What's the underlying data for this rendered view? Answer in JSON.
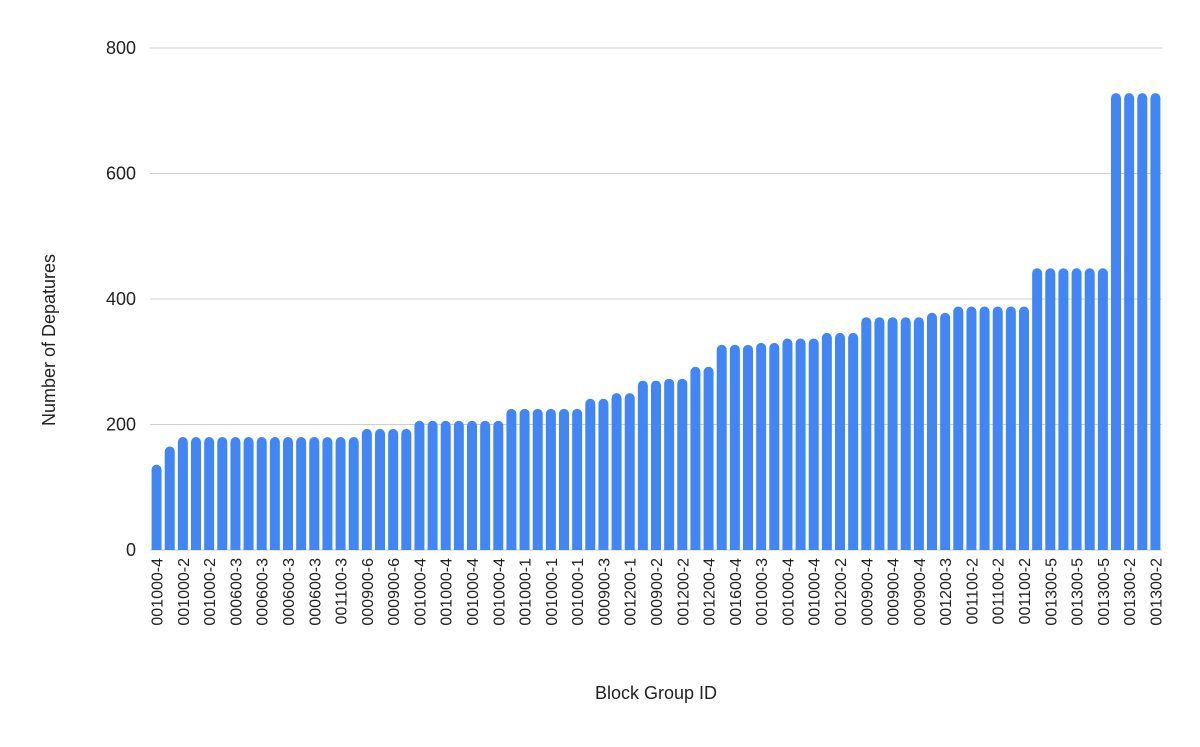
{
  "chart_data": {
    "type": "bar",
    "xlabel": "Block Group ID",
    "ylabel": "Number of Depatures",
    "categories": [
      "001000-4",
      null,
      "001000-2",
      null,
      "001000-2",
      null,
      "000600-3",
      null,
      "000600-3",
      null,
      "000600-3",
      null,
      "000600-3",
      null,
      "001100-3",
      null,
      "000900-6",
      null,
      "000900-6",
      null,
      "001000-4",
      null,
      "001000-4",
      null,
      "001000-4",
      null,
      "001000-4",
      null,
      "001000-1",
      null,
      "001000-1",
      null,
      "001000-1",
      null,
      "000900-3",
      null,
      "001200-1",
      null,
      "000900-2",
      null,
      "001200-2",
      null,
      "001200-4",
      null,
      "001600-4",
      null,
      "001000-3",
      null,
      "001000-4",
      null,
      "001000-4",
      null,
      "001200-2",
      null,
      "000900-4",
      null,
      "000900-4",
      null,
      "000900-4",
      null,
      "001200-3",
      null,
      "001100-2",
      null,
      "001100-2",
      null,
      "001100-2",
      null,
      "001300-5",
      null,
      "001300-5",
      null,
      "001300-5",
      null,
      "001300-2",
      null,
      "001300-2"
    ],
    "values": [
      136,
      165,
      180,
      180,
      180,
      180,
      180,
      180,
      180,
      180,
      180,
      180,
      180,
      180,
      180,
      180,
      193,
      193,
      193,
      193,
      206,
      206,
      206,
      206,
      206,
      206,
      206,
      225,
      225,
      225,
      225,
      225,
      225,
      241,
      241,
      250,
      250,
      270,
      270,
      273,
      273,
      292,
      292,
      327,
      327,
      327,
      330,
      330,
      337,
      337,
      337,
      346,
      346,
      346,
      371,
      371,
      371,
      371,
      371,
      378,
      378,
      388,
      388,
      388,
      388,
      388,
      388,
      449,
      449,
      449,
      449,
      449,
      449,
      728,
      728,
      728,
      728
    ],
    "color": "#4285f4",
    "ylim": [
      0,
      800
    ],
    "yticks": [
      0,
      200,
      400,
      600,
      800
    ],
    "grid": true
  }
}
